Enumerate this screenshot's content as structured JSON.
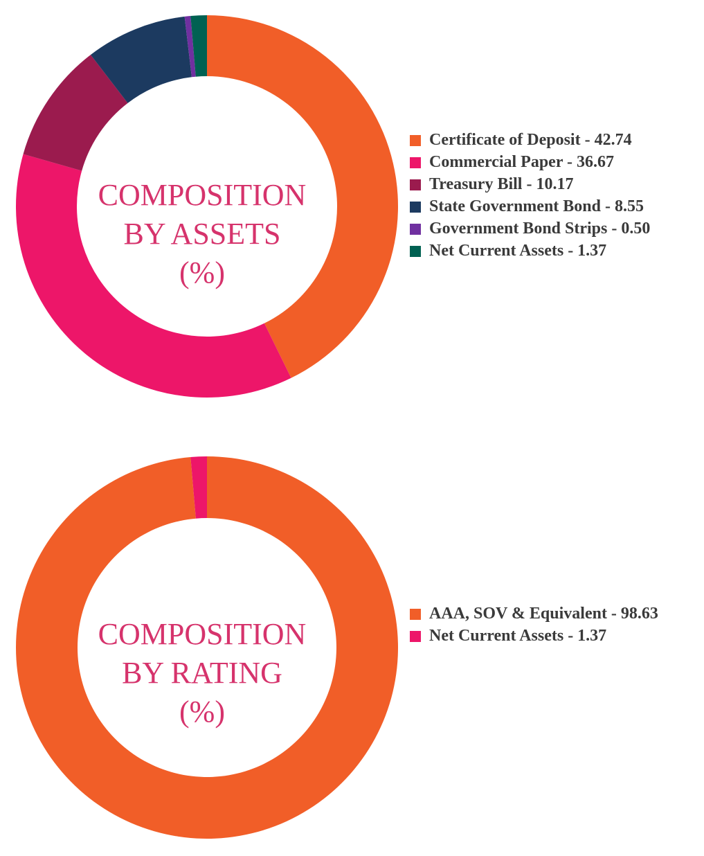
{
  "chart_data": [
    {
      "type": "pie",
      "title_lines": [
        "COMPOSITION",
        "BY ASSETS",
        "(%)"
      ],
      "categories": [
        "Certificate of Deposit",
        "Commercial Paper",
        "Treasury Bill",
        "State Government Bond",
        "Government Bond Strips",
        "Net Current Assets"
      ],
      "values": [
        42.74,
        36.67,
        10.17,
        8.55,
        0.5,
        1.37
      ],
      "value_labels": [
        "42.74",
        "36.67",
        "10.17",
        "8.55",
        "0.50",
        "1.37"
      ],
      "colors": [
        "#f15e28",
        "#ed1669",
        "#9b1b4e",
        "#1c3a60",
        "#7030a0",
        "#006152"
      ],
      "legend": [
        "Certificate of Deposit - 42.74",
        "Commercial Paper - 36.67",
        "Treasury Bill - 10.17",
        "State Government Bond - 8.55",
        "Government Bond Strips - 0.50",
        "Net Current Assets - 1.37"
      ],
      "legend_position": "right"
    },
    {
      "type": "pie",
      "title_lines": [
        "COMPOSITION",
        "BY RATING",
        "(%)"
      ],
      "categories": [
        "AAA, SOV & Equivalent",
        "Net Current Assets"
      ],
      "values": [
        98.63,
        1.37
      ],
      "value_labels": [
        "98.63",
        "1.37"
      ],
      "colors": [
        "#f15e28",
        "#ed1669"
      ],
      "legend": [
        "AAA, SOV & Equivalent - 98.63",
        "Net Current Assets - 1.37"
      ],
      "legend_position": "right"
    }
  ]
}
